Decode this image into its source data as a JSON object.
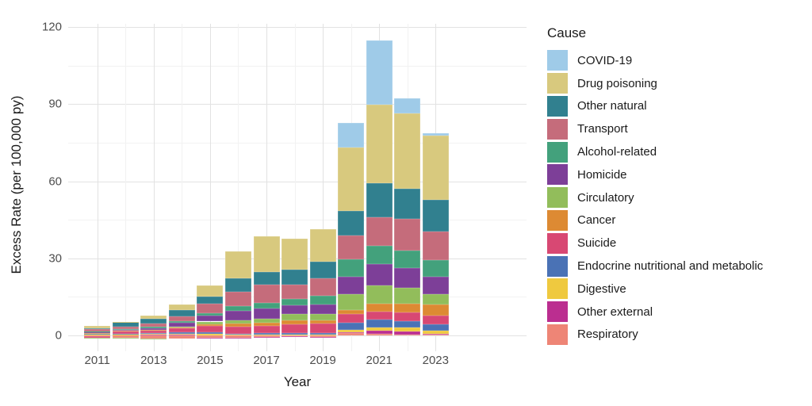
{
  "chart_data": {
    "type": "bar",
    "stacked": true,
    "title": "",
    "xlabel": "Year",
    "ylabel": "Excess Rate (per 100,000 py)",
    "legend_title": "Cause",
    "legend_position": "right",
    "grid": true,
    "ylim": [
      -6,
      121
    ],
    "yticks": [
      0,
      30,
      60,
      90,
      120
    ],
    "yticks_minor": [
      15,
      45,
      75,
      105
    ],
    "categories": [
      2011,
      2012,
      2013,
      2014,
      2015,
      2016,
      2017,
      2018,
      2019,
      2020,
      2021,
      2022,
      2023
    ],
    "xticks_labeled": [
      2011,
      2013,
      2015,
      2017,
      2019,
      2021,
      2023
    ],
    "series": [
      {
        "name": "COVID-19",
        "color": "#9fcbe8",
        "values": [
          0,
          0,
          0,
          0,
          0,
          0,
          0,
          0,
          0,
          9.5,
          25.0,
          5.9,
          0.9
        ]
      },
      {
        "name": "Drug poisoning",
        "color": "#d8c97e",
        "values": [
          0.8,
          0.3,
          1.0,
          1.9,
          4.3,
          10.5,
          13.7,
          12.3,
          12.5,
          24.7,
          30.5,
          29.3,
          24.8
        ]
      },
      {
        "name": "Other natural",
        "color": "#31808f",
        "values": [
          0.3,
          1.6,
          2.0,
          2.7,
          2.9,
          5.2,
          5.2,
          5.7,
          6.6,
          9.4,
          13.3,
          11.8,
          12.6
        ]
      },
      {
        "name": "Transport",
        "color": "#c56c7b",
        "values": [
          0.9,
          1.0,
          1.3,
          1.8,
          3.5,
          5.6,
          7.0,
          5.7,
          6.8,
          9.3,
          10.9,
          12.4,
          11.1
        ]
      },
      {
        "name": "Alcohol-related",
        "color": "#43a17c",
        "values": [
          0.2,
          0.3,
          0.4,
          0.7,
          1.0,
          1.8,
          2.0,
          2.5,
          3.3,
          7.0,
          7.2,
          6.7,
          6.4
        ]
      },
      {
        "name": "Homicide",
        "color": "#7d3f98",
        "values": [
          0.5,
          0.5,
          0.7,
          1.4,
          2.3,
          3.7,
          4.1,
          3.3,
          3.9,
          6.7,
          8.4,
          7.7,
          6.7
        ]
      },
      {
        "name": "Circulatory",
        "color": "#92bd5b",
        "values": [
          -0.2,
          -0.3,
          -0.4,
          0.3,
          1.1,
          1.5,
          1.6,
          2.4,
          2.4,
          6.0,
          7.1,
          6.2,
          4.1
        ]
      },
      {
        "name": "Cancer",
        "color": "#dd8a33",
        "values": [
          0.2,
          0.2,
          0.3,
          0.4,
          0.7,
          1.0,
          1.2,
          1.5,
          1.2,
          1.8,
          3.0,
          3.3,
          4.4
        ]
      },
      {
        "name": "Suicide",
        "color": "#d84873",
        "values": [
          -0.6,
          0.8,
          1.0,
          1.6,
          2.4,
          2.8,
          2.9,
          3.6,
          3.6,
          3.2,
          3.1,
          3.4,
          3.3
        ]
      },
      {
        "name": "Endocrine nutritional and metabolic",
        "color": "#4a72b5",
        "values": [
          0.3,
          0.3,
          0.4,
          0.5,
          0.7,
          0.4,
          0.5,
          0.5,
          0.8,
          2.9,
          3.0,
          2.6,
          2.4
        ]
      },
      {
        "name": "Digestive",
        "color": "#efc93f",
        "values": [
          0.1,
          0.2,
          0.2,
          0.3,
          0.5,
          0.3,
          0.3,
          0.3,
          0.2,
          0.8,
          1.5,
          1.6,
          1.2
        ]
      },
      {
        "name": "Other external",
        "color": "#bb2e90",
        "values": [
          0.3,
          0.2,
          0.3,
          0.3,
          -0.4,
          -0.3,
          -0.2,
          -0.2,
          -0.3,
          0.3,
          1.0,
          1.0,
          0.5
        ]
      },
      {
        "name": "Respiratory",
        "color": "#ee8576",
        "values": [
          -0.4,
          -1.0,
          -1.2,
          -1.3,
          -0.8,
          -0.8,
          -0.6,
          -0.4,
          -0.5,
          1.0,
          0.7,
          0.4,
          0.2
        ]
      }
    ]
  }
}
